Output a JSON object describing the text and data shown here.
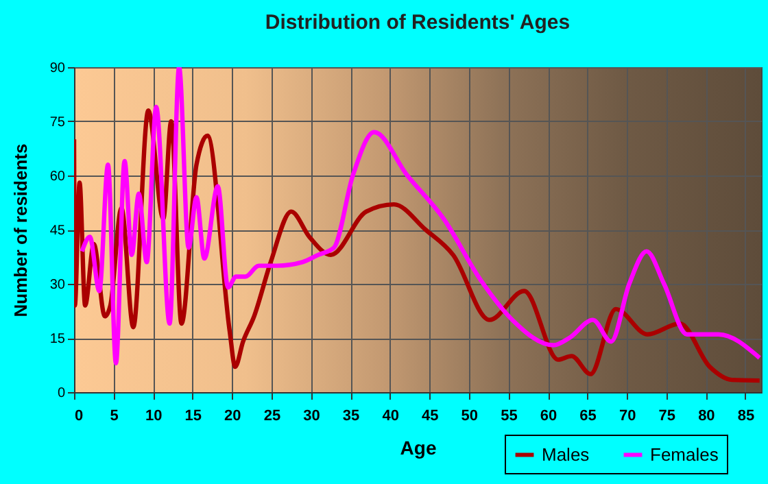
{
  "chart_data": {
    "type": "line",
    "title": "Distribution of Residents' Ages",
    "xlabel": "Age",
    "ylabel": "Number of residents",
    "xlim": [
      0,
      87
    ],
    "xticks": [
      0,
      5,
      10,
      15,
      20,
      25,
      30,
      35,
      40,
      45,
      50,
      55,
      60,
      65,
      70,
      75,
      80,
      85
    ],
    "ylim": [
      0,
      90
    ],
    "yticks": [
      0,
      15,
      30,
      45,
      60,
      75,
      90
    ],
    "grid": true,
    "legend": "bottom right",
    "line_style": "solid",
    "series": [
      {
        "name": "Males",
        "color": "#aa0000",
        "x": [
          0,
          0.1,
          0.7,
          1.4,
          2.5,
          3.9,
          4.6,
          6,
          7.5,
          9.4,
          11.3,
          12.3,
          13.6,
          15.5,
          16.9,
          19.7,
          20.4,
          21.4,
          22.8,
          24.9,
          27.5,
          29.8,
          32.5,
          37,
          40.5,
          44.5,
          48,
          52.6,
          57,
          61.3,
          63,
          65.4,
          68.6,
          72.6,
          76.7,
          80.5,
          83.3,
          86.8
        ],
        "values": [
          70,
          24,
          58,
          24,
          41,
          21,
          24,
          51,
          18,
          78,
          48,
          75,
          19,
          63,
          71,
          17,
          7,
          14,
          21,
          36,
          50,
          43,
          38,
          50,
          52,
          45,
          38,
          20,
          28,
          9,
          10,
          5,
          23,
          16,
          19,
          7,
          3.4,
          3.2
        ]
      },
      {
        "name": "Females",
        "color": "#ff00ff",
        "x": [
          1,
          2,
          3.2,
          4.3,
          5.3,
          6.4,
          7.3,
          8.2,
          9.2,
          10.4,
          12.1,
          13.3,
          14.5,
          15.5,
          16.5,
          18.2,
          19.5,
          20.5,
          21.7,
          23.4,
          25.7,
          28.9,
          30.9,
          32.9,
          35.3,
          38,
          42.2,
          46.8,
          51.5,
          55.5,
          60.7,
          62.7,
          65.7,
          68,
          70.3,
          72.5,
          74.7,
          77.6,
          81.6,
          86.8
        ],
        "values": [
          39,
          43,
          28,
          63,
          8,
          64,
          38,
          55,
          36,
          79,
          19,
          90,
          40,
          54,
          37,
          57,
          29,
          32,
          32,
          35,
          35,
          36,
          38,
          40,
          60,
          72,
          60,
          48,
          31,
          20,
          13,
          15,
          20,
          14,
          30,
          39,
          30,
          16,
          16,
          9.5
        ]
      }
    ]
  }
}
